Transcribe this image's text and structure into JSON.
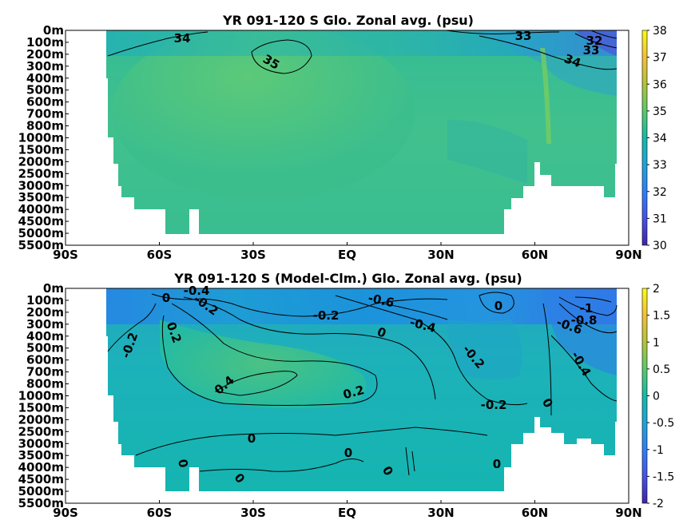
{
  "chart_data": [
    {
      "type": "heatmap",
      "title": "YR 091-120 S Glo. Zonal avg. (psu)",
      "xlabel": "",
      "ylabel": "",
      "x_ticks": [
        "90S",
        "60S",
        "30S",
        "EQ",
        "30N",
        "60N",
        "90N"
      ],
      "y_ticks": [
        "0m",
        "100m",
        "200m",
        "300m",
        "400m",
        "500m",
        "600m",
        "700m",
        "800m",
        "1000m",
        "1500m",
        "2000m",
        "2500m",
        "3000m",
        "3500m",
        "4000m",
        "4500m",
        "5000m",
        "5500m"
      ],
      "colorbar": {
        "min": 30,
        "max": 38,
        "ticks": [
          "30",
          "31",
          "32",
          "33",
          "34",
          "35",
          "36",
          "37",
          "38"
        ]
      },
      "contour_labels": [
        {
          "text": "34",
          "lat": -52,
          "depth": "100m"
        },
        {
          "text": "35",
          "lat": -25,
          "depth": "300m"
        },
        {
          "text": "33",
          "lat": 55,
          "depth": "50m"
        },
        {
          "text": "32",
          "lat": 82,
          "depth": "100m"
        },
        {
          "text": "33",
          "lat": 81,
          "depth": "200m"
        },
        {
          "text": "34",
          "lat": 67,
          "depth": "300m"
        }
      ]
    },
    {
      "type": "heatmap",
      "title": "YR 091-120 S (Model-Clm.) Glo. Zonal avg. (psu)",
      "xlabel": "",
      "ylabel": "",
      "x_ticks": [
        "90S",
        "60S",
        "30S",
        "EQ",
        "30N",
        "60N",
        "90N"
      ],
      "y_ticks": [
        "0m",
        "100m",
        "200m",
        "300m",
        "400m",
        "500m",
        "600m",
        "700m",
        "800m",
        "1000m",
        "1500m",
        "2000m",
        "2500m",
        "3000m",
        "3500m",
        "4000m",
        "4500m",
        "5000m",
        "5500m"
      ],
      "colorbar": {
        "min": -2,
        "max": 2,
        "ticks": [
          "2",
          "1.5",
          "1",
          "0.5",
          "0",
          "-0.5",
          "-1",
          "-1.5",
          "-2"
        ]
      },
      "contour_labels": [
        {
          "text": "-0.4",
          "lat": -48,
          "depth": "0m"
        },
        {
          "text": "0",
          "lat": -60,
          "depth": "100m"
        },
        {
          "text": "-0.2",
          "lat": -45,
          "depth": "150m"
        },
        {
          "text": "-0.6",
          "lat": 11,
          "depth": "100m"
        },
        {
          "text": "-0.2",
          "lat": -7,
          "depth": "300m"
        },
        {
          "text": "-0.4",
          "lat": 23,
          "depth": "400m"
        },
        {
          "text": "0",
          "lat": 45,
          "depth": "100m"
        },
        {
          "text": "-1",
          "lat": 85,
          "depth": "150m"
        },
        {
          "text": "-0.8",
          "lat": 83,
          "depth": "300m"
        },
        {
          "text": "-0.6",
          "lat": 78,
          "depth": "400m"
        },
        {
          "text": "0.2",
          "lat": -60,
          "depth": "500m"
        },
        {
          "text": "-0.2",
          "lat": -81,
          "depth": "600m"
        },
        {
          "text": "0",
          "lat": 11,
          "depth": "400m"
        },
        {
          "text": "-0.2",
          "lat": 37,
          "depth": "700m"
        },
        {
          "text": "-0.4",
          "lat": 74,
          "depth": "800m"
        },
        {
          "text": "0.4",
          "lat": -38,
          "depth": "1000m"
        },
        {
          "text": "0.2",
          "lat": 2,
          "depth": "1500m"
        },
        {
          "text": "-0.2",
          "lat": 46,
          "depth": "2000m"
        },
        {
          "text": "0",
          "lat": 62,
          "depth": "2000m"
        },
        {
          "text": "0",
          "lat": -28,
          "depth": "3000m"
        },
        {
          "text": "0",
          "lat": -51,
          "depth": "4000m"
        },
        {
          "text": "0",
          "lat": 0,
          "depth": "3700m"
        },
        {
          "text": "0",
          "lat": 12,
          "depth": "4500m"
        },
        {
          "text": "0",
          "lat": 46,
          "depth": "4000m"
        },
        {
          "text": "0",
          "lat": -40,
          "depth": "5000m"
        }
      ]
    }
  ]
}
